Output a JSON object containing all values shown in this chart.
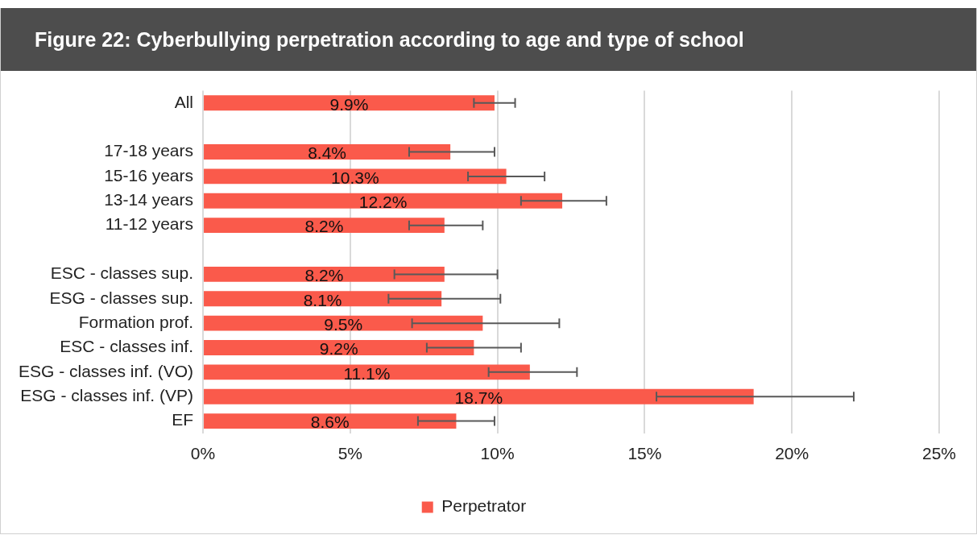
{
  "chart_data": {
    "type": "bar",
    "orientation": "horizontal",
    "title": "Figure 22: Cyberbullying perpetration according to age and type of school",
    "categories": [
      "All",
      null,
      "17-18 years",
      "15-16 years",
      "13-14 years",
      "11-12 years",
      null,
      "ESC - classes sup.",
      "ESG - classes sup.",
      "Formation prof.",
      "ESC - classes inf.",
      "ESG - classes inf. (VO)",
      "ESG - classes inf. (VP)",
      "EF"
    ],
    "series": [
      {
        "name": "Perpetrator",
        "color": "#fa5a4b",
        "values": [
          9.9,
          null,
          8.4,
          10.3,
          12.2,
          8.2,
          null,
          8.2,
          8.1,
          9.5,
          9.2,
          11.1,
          18.7,
          8.6
        ],
        "value_labels": [
          "9.9%",
          null,
          "8.4%",
          "10.3%",
          "12.2%",
          "8.2%",
          null,
          "8.2%",
          "8.1%",
          "9.5%",
          "9.2%",
          "11.1%",
          "18.7%",
          "8.6%"
        ],
        "errors": [
          [
            9.2,
            10.6
          ],
          null,
          [
            7.0,
            9.9
          ],
          [
            9.0,
            11.6
          ],
          [
            10.8,
            13.7
          ],
          [
            7.0,
            9.5
          ],
          null,
          [
            6.5,
            10.0
          ],
          [
            6.3,
            10.1
          ],
          [
            7.1,
            12.1
          ],
          [
            7.6,
            10.8
          ],
          [
            9.7,
            12.7
          ],
          [
            15.4,
            22.1
          ],
          [
            7.3,
            9.9
          ]
        ]
      }
    ],
    "xlim": [
      0,
      25
    ],
    "xticks": [
      {
        "value": 0,
        "label": "0%"
      },
      {
        "value": 5,
        "label": "5%"
      },
      {
        "value": 10,
        "label": "10%"
      },
      {
        "value": 15,
        "label": "15%"
      },
      {
        "value": 20,
        "label": "20%"
      },
      {
        "value": 25,
        "label": "25%"
      }
    ],
    "grid": "x",
    "legend": "bottom"
  }
}
